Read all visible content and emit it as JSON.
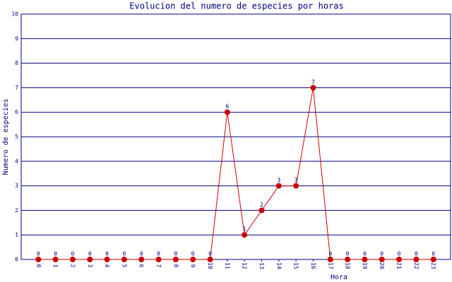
{
  "chart_data": {
    "type": "line",
    "title": "Evolucion del numero de especies por horas",
    "x_label": "Hora",
    "y_label": "Numero de especies",
    "categories": [
      "0",
      "1",
      "2",
      "3",
      "4",
      "5",
      "6",
      "7",
      "8",
      "9",
      "10",
      "11",
      "12",
      "13",
      "14",
      "15",
      "16",
      "17",
      "18",
      "19",
      "20",
      "21",
      "22",
      "23"
    ],
    "values": [
      0,
      0,
      0,
      0,
      0,
      0,
      0,
      0,
      0,
      0,
      0,
      6,
      1,
      2,
      3,
      3,
      7,
      0,
      0,
      0,
      0,
      0,
      0,
      0
    ],
    "color": "#cc0000",
    "ylim": [
      0,
      10
    ],
    "yticks": [
      0,
      1,
      2,
      3,
      4,
      5,
      6,
      7,
      8,
      9,
      10
    ],
    "grid": true
  }
}
